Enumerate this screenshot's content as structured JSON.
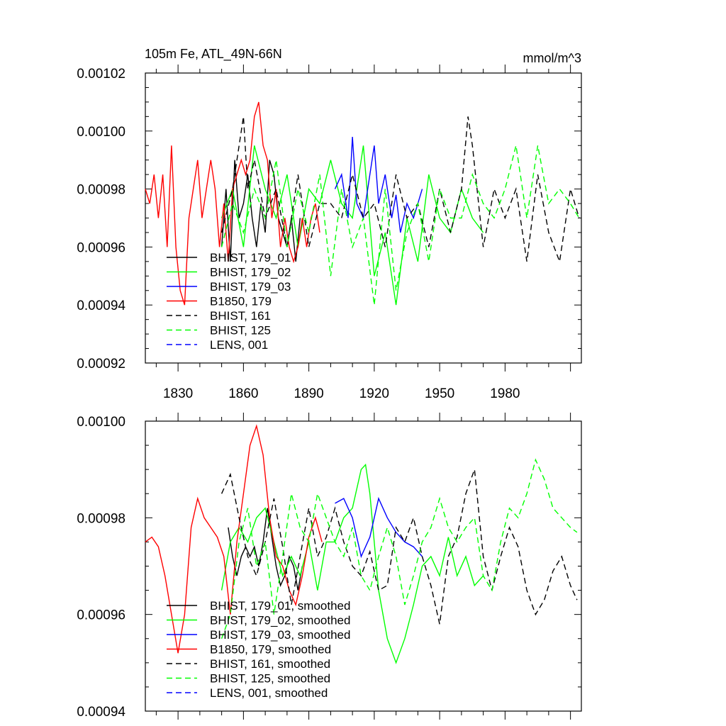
{
  "chart_data": [
    {
      "type": "line",
      "title_left": "105m Fe, ATL_49N-66N",
      "title_right": "mmol/m^3",
      "xlabel": "",
      "ylabel": "",
      "xlim": [
        1815,
        2015
      ],
      "ylim": [
        0.00092,
        0.00102
      ],
      "yticks": [
        "0.00092",
        "0.00094",
        "0.00096",
        "0.00098",
        "0.00100",
        "0.00102"
      ],
      "xticks": [
        "1830",
        "1860",
        "1890",
        "1920",
        "1950",
        "1980"
      ],
      "legend_position": "lower-left",
      "series": [
        {
          "name": "BHIST, 179_01",
          "color": "#000000",
          "dash": "solid",
          "x": [
            1850,
            1852,
            1854,
            1856,
            1858,
            1860,
            1862,
            1864,
            1866,
            1868,
            1870,
            1872,
            1874,
            1876,
            1878,
            1880,
            1882,
            1884,
            1886
          ],
          "y": [
            0.00096,
            0.00098,
            0.000955,
            0.00099,
            0.00097,
            0.000975,
            0.000985,
            0.00097,
            0.00096,
            0.000975,
            0.000965,
            0.00099,
            0.000985,
            0.00097,
            0.000965,
            0.00096,
            0.00097,
            0.000955,
            0.00097
          ]
        },
        {
          "name": "BHIST, 179_02",
          "color": "#00ff00",
          "dash": "solid",
          "x": [
            1850,
            1855,
            1860,
            1865,
            1870,
            1875,
            1880,
            1885,
            1890,
            1895,
            1900,
            1905,
            1910,
            1915,
            1920,
            1925,
            1930,
            1935,
            1940,
            1945,
            1950,
            1955,
            1960,
            1965,
            1970
          ],
          "y": [
            0.00097,
            0.00098,
            0.00096,
            0.000995,
            0.00098,
            0.00097,
            0.000985,
            0.00096,
            0.00098,
            0.000975,
            0.00099,
            0.000975,
            0.00097,
            0.000995,
            0.00095,
            0.000965,
            0.00094,
            0.00097,
            0.000955,
            0.000985,
            0.00097,
            0.000965,
            0.00098,
            0.00097,
            0.000965
          ]
        },
        {
          "name": "BHIST, 179_03",
          "color": "#0000ff",
          "dash": "solid",
          "x": [
            1902,
            1905,
            1908,
            1910,
            1912,
            1915,
            1918,
            1920,
            1922,
            1925,
            1928,
            1930,
            1932,
            1935,
            1938,
            1940,
            1942
          ],
          "y": [
            0.00098,
            0.000985,
            0.00097,
            0.000998,
            0.000975,
            0.00097,
            0.000985,
            0.000995,
            0.000975,
            0.000985,
            0.00097,
            0.000978,
            0.000965,
            0.000975,
            0.00097,
            0.000975,
            0.00098
          ]
        },
        {
          "name": "B1850, 179",
          "color": "#ff0000",
          "dash": "solid",
          "x": [
            1815,
            1817,
            1819,
            1821,
            1823,
            1825,
            1827,
            1829,
            1831,
            1833,
            1835,
            1837,
            1839,
            1841,
            1843,
            1845,
            1847,
            1849,
            1851,
            1853,
            1855,
            1857,
            1859,
            1861,
            1863,
            1865,
            1867,
            1869,
            1871,
            1873,
            1875,
            1877,
            1879,
            1881,
            1883,
            1885,
            1887,
            1889,
            1891,
            1893,
            1895
          ],
          "y": [
            0.00098,
            0.000975,
            0.000985,
            0.00097,
            0.000985,
            0.00096,
            0.000995,
            0.00096,
            0.000945,
            0.00094,
            0.00097,
            0.00098,
            0.00099,
            0.00097,
            0.00098,
            0.00099,
            0.00098,
            0.00096,
            0.000975,
            0.000955,
            0.00098,
            0.000985,
            0.00099,
            0.000985,
            0.00099,
            0.001005,
            0.00101,
            0.000995,
            0.00099,
            0.00097,
            0.00098,
            0.00096,
            0.00097,
            0.00096,
            0.000955,
            0.00096,
            0.00097,
            0.00096,
            0.00097,
            0.000975,
            0.000965
          ]
        },
        {
          "name": "BHIST, 161",
          "color": "#000000",
          "dash": "dashed",
          "x": [
            1850,
            1855,
            1860,
            1862,
            1865,
            1870,
            1875,
            1880,
            1885,
            1890,
            1895,
            1900,
            1905,
            1910,
            1915,
            1920,
            1925,
            1930,
            1935,
            1940,
            1945,
            1950,
            1955,
            1960,
            1963,
            1965,
            1970,
            1975,
            1980,
            1985,
            1990,
            1995,
            2000,
            2005,
            2010,
            2014
          ],
          "y": [
            0.000965,
            0.00098,
            0.001005,
            0.00098,
            0.00099,
            0.00097,
            0.00098,
            0.00096,
            0.000985,
            0.00096,
            0.000975,
            0.000975,
            0.00097,
            0.000985,
            0.00097,
            0.000975,
            0.00096,
            0.000985,
            0.00097,
            0.000975,
            0.00096,
            0.00098,
            0.000965,
            0.00098,
            0.001005,
            0.000995,
            0.00096,
            0.00098,
            0.00097,
            0.00098,
            0.000955,
            0.000985,
            0.000965,
            0.000955,
            0.00098,
            0.00097
          ]
        },
        {
          "name": "BHIST, 125",
          "color": "#00ff00",
          "dash": "dashed",
          "x": [
            1850,
            1855,
            1860,
            1865,
            1870,
            1875,
            1880,
            1885,
            1890,
            1895,
            1900,
            1905,
            1910,
            1915,
            1920,
            1925,
            1930,
            1935,
            1940,
            1945,
            1950,
            1955,
            1960,
            1965,
            1970,
            1975,
            1980,
            1985,
            1990,
            1995,
            2000,
            2005,
            2010,
            2014
          ],
          "y": [
            0.00096,
            0.000975,
            0.000965,
            0.00098,
            0.00097,
            0.00099,
            0.00096,
            0.00098,
            0.000965,
            0.000985,
            0.00095,
            0.00098,
            0.00096,
            0.00097,
            0.00094,
            0.00098,
            0.000945,
            0.000965,
            0.000975,
            0.000955,
            0.00098,
            0.00097,
            0.00097,
            0.000985,
            0.000975,
            0.00097,
            0.00098,
            0.000995,
            0.00097,
            0.000995,
            0.000975,
            0.00098,
            0.000975,
            0.00097
          ]
        }
      ]
    },
    {
      "type": "line",
      "title_left": "",
      "title_right": "",
      "xlabel": "",
      "ylabel": "",
      "xlim": [
        1815,
        2015
      ],
      "ylim": [
        0.00094,
        0.001
      ],
      "yticks": [
        "0.00094",
        "0.00096",
        "0.00098",
        "0.00100"
      ],
      "xticks": [],
      "legend_position": "lower-left",
      "series": [
        {
          "name": "BHIST, 179_01, smoothed",
          "color": "#000000",
          "dash": "solid",
          "x": [
            1853,
            1855,
            1857,
            1859,
            1861,
            1863,
            1865,
            1867,
            1869,
            1871,
            1873,
            1875,
            1877,
            1879,
            1881,
            1883,
            1885,
            1887
          ],
          "y": [
            0.000978,
            0.000972,
            0.000968,
            0.000972,
            0.000974,
            0.000972,
            0.000974,
            0.00097,
            0.000975,
            0.000982,
            0.000976,
            0.00097,
            0.000966,
            0.000968,
            0.000972,
            0.00097,
            0.000965,
            0.00097
          ]
        },
        {
          "name": "BHIST, 179_02, smoothed",
          "color": "#00ff00",
          "dash": "solid",
          "x": [
            1850,
            1854,
            1858,
            1862,
            1866,
            1870,
            1874,
            1878,
            1882,
            1886,
            1890,
            1894,
            1898,
            1902,
            1906,
            1910,
            1914,
            1916,
            1918,
            1922,
            1926,
            1930,
            1934,
            1938,
            1942,
            1946,
            1950,
            1954,
            1958,
            1962,
            1966,
            1970
          ],
          "y": [
            0.000965,
            0.000975,
            0.000978,
            0.000975,
            0.00098,
            0.000982,
            0.000975,
            0.000968,
            0.000972,
            0.000968,
            0.000975,
            0.000965,
            0.000975,
            0.000975,
            0.00098,
            0.000982,
            0.00099,
            0.000991,
            0.000985,
            0.000965,
            0.000955,
            0.00095,
            0.000955,
            0.000962,
            0.00097,
            0.000972,
            0.000968,
            0.000976,
            0.000968,
            0.000972,
            0.000966,
            0.000968
          ]
        },
        {
          "name": "BHIST, 179_03, smoothed",
          "color": "#0000ff",
          "dash": "solid",
          "x": [
            1902,
            1906,
            1910,
            1914,
            1918,
            1922,
            1926,
            1930,
            1934,
            1938,
            1942
          ],
          "y": [
            0.000983,
            0.000984,
            0.00098,
            0.000972,
            0.000976,
            0.000984,
            0.00098,
            0.000977,
            0.000975,
            0.000974,
            0.000972
          ]
        },
        {
          "name": "B1850, 179, smoothed",
          "color": "#ff0000",
          "dash": "solid",
          "x": [
            1815,
            1818,
            1821,
            1824,
            1827,
            1830,
            1833,
            1836,
            1839,
            1842,
            1845,
            1848,
            1851,
            1854,
            1857,
            1860,
            1863,
            1866,
            1869,
            1872,
            1875,
            1878,
            1881,
            1884,
            1887,
            1890,
            1893,
            1896
          ],
          "y": [
            0.000975,
            0.000976,
            0.000974,
            0.000968,
            0.00096,
            0.000952,
            0.00096,
            0.000978,
            0.000984,
            0.00098,
            0.000978,
            0.000976,
            0.000972,
            0.00096,
            0.000975,
            0.000985,
            0.000995,
            0.000999,
            0.000993,
            0.00098,
            0.000972,
            0.00097,
            0.000965,
            0.000962,
            0.000968,
            0.000976,
            0.00098,
            0.000975
          ]
        },
        {
          "name": "BHIST, 161, smoothed",
          "color": "#000000",
          "dash": "dashed",
          "x": [
            1850,
            1854,
            1858,
            1862,
            1866,
            1870,
            1874,
            1878,
            1882,
            1886,
            1890,
            1894,
            1898,
            1902,
            1906,
            1910,
            1914,
            1918,
            1922,
            1926,
            1930,
            1934,
            1938,
            1942,
            1946,
            1950,
            1954,
            1958,
            1962,
            1966,
            1970,
            1974,
            1978,
            1982,
            1986,
            1990,
            1994,
            1998,
            2002,
            2006,
            2010,
            2013
          ],
          "y": [
            0.000985,
            0.000989,
            0.00098,
            0.000972,
            0.000968,
            0.000975,
            0.000984,
            0.000974,
            0.000962,
            0.000972,
            0.000982,
            0.000972,
            0.000976,
            0.000982,
            0.000975,
            0.00097,
            0.000968,
            0.000973,
            0.000965,
            0.000966,
            0.000978,
            0.000975,
            0.00098,
            0.000972,
            0.000966,
            0.000958,
            0.000972,
            0.000976,
            0.000985,
            0.00099,
            0.000972,
            0.000965,
            0.000972,
            0.000978,
            0.000974,
            0.000965,
            0.00096,
            0.000963,
            0.000969,
            0.000972,
            0.000966,
            0.000963
          ]
        },
        {
          "name": "BHIST, 125, smoothed",
          "color": "#00ff00",
          "dash": "dashed",
          "x": [
            1850,
            1854,
            1858,
            1862,
            1866,
            1870,
            1874,
            1878,
            1882,
            1886,
            1890,
            1894,
            1898,
            1902,
            1906,
            1910,
            1914,
            1918,
            1922,
            1926,
            1930,
            1934,
            1938,
            1942,
            1946,
            1950,
            1954,
            1958,
            1962,
            1966,
            1970,
            1974,
            1978,
            1982,
            1986,
            1990,
            1994,
            1998,
            2002,
            2006,
            2010,
            2013
          ],
          "y": [
            0.000955,
            0.00096,
            0.000975,
            0.000982,
            0.00097,
            0.000975,
            0.00096,
            0.000972,
            0.000985,
            0.000978,
            0.000975,
            0.000985,
            0.00098,
            0.000975,
            0.000972,
            0.000978,
            0.000968,
            0.000965,
            0.000972,
            0.000978,
            0.000972,
            0.000962,
            0.000968,
            0.000975,
            0.000978,
            0.000984,
            0.000978,
            0.000975,
            0.000978,
            0.00098,
            0.000968,
            0.000965,
            0.000975,
            0.000982,
            0.00098,
            0.000985,
            0.000992,
            0.000988,
            0.000982,
            0.00098,
            0.000978,
            0.000977
          ]
        },
        {
          "name": "LENS, 001, smoothed",
          "color": "#0000ff",
          "dash": "dashed",
          "x": [],
          "y": []
        }
      ]
    }
  ],
  "legends": [
    [
      "BHIST, 179_01",
      "BHIST, 179_02",
      "BHIST, 179_03",
      "B1850, 179",
      "BHIST, 161",
      "BHIST, 125",
      "LENS, 001"
    ],
    [
      "BHIST, 179_01, smoothed",
      "BHIST, 179_02, smoothed",
      "BHIST, 179_03, smoothed",
      "B1850, 179, smoothed",
      "BHIST, 161, smoothed",
      "BHIST, 125, smoothed",
      "LENS, 001, smoothed"
    ]
  ],
  "legend_styles": [
    {
      "color": "#000000",
      "dash": "solid"
    },
    {
      "color": "#00ff00",
      "dash": "solid"
    },
    {
      "color": "#0000ff",
      "dash": "solid"
    },
    {
      "color": "#ff0000",
      "dash": "solid"
    },
    {
      "color": "#000000",
      "dash": "dashed"
    },
    {
      "color": "#00ff00",
      "dash": "dashed"
    },
    {
      "color": "#0000ff",
      "dash": "dashed"
    }
  ]
}
